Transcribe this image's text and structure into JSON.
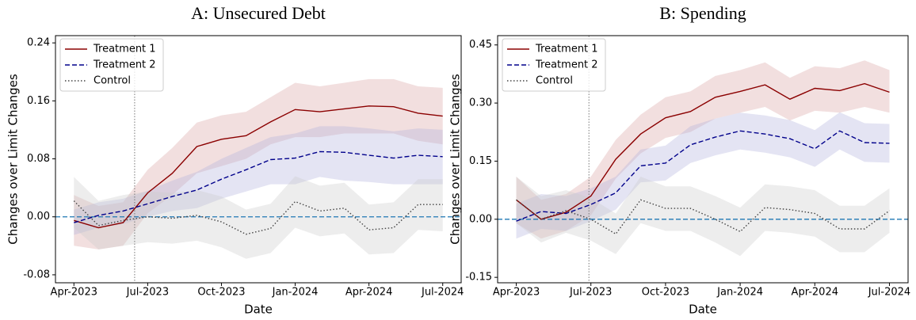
{
  "chart_data": [
    {
      "type": "line",
      "title": "A: Unsecured Debt",
      "x_label": "Date",
      "y_label": "Changes over Limit Changes",
      "categories": [
        "Apr-2023",
        null,
        null,
        "Jul-2023",
        null,
        null,
        "Oct-2023",
        null,
        null,
        "Jan-2024",
        null,
        null,
        "Apr-2024",
        null,
        null,
        "Jul-2024"
      ],
      "ylim": [
        -0.091,
        0.25
      ],
      "yticks": [
        -0.08,
        {
          "value": 0,
          "label": "0.00"
        },
        0.08,
        0.16,
        0.24
      ],
      "vline": 2.47,
      "hline": 0,
      "hline_color": "#1f77b4",
      "legend": "upper left",
      "series": [
        {
          "name": "Treatment 1",
          "color": "#8b0000",
          "band_color": "#d9a3a3",
          "dash": "solid",
          "values": [
            -0.005,
            -0.015,
            -0.008,
            0.033,
            0.06,
            0.097,
            0.107,
            0.112,
            0.131,
            0.148,
            0.145,
            0.149,
            0.153,
            0.152,
            0.143,
            0.139
          ],
          "lower": [
            -0.04,
            -0.045,
            -0.04,
            0.005,
            0.03,
            0.06,
            0.07,
            0.08,
            0.1,
            0.11,
            0.11,
            0.115,
            0.115,
            0.115,
            0.105,
            0.1
          ],
          "upper": [
            0.03,
            0.015,
            0.02,
            0.065,
            0.095,
            0.13,
            0.14,
            0.145,
            0.165,
            0.185,
            0.18,
            0.185,
            0.19,
            0.19,
            0.18,
            0.178
          ]
        },
        {
          "name": "Treatment 2",
          "color": "#00008b",
          "band_color": "#b3b3dd",
          "dash": "dashed",
          "values": [
            -0.008,
            0.002,
            0.008,
            0.018,
            0.028,
            0.037,
            0.052,
            0.065,
            0.079,
            0.081,
            0.09,
            0.089,
            0.085,
            0.081,
            0.085,
            0.083
          ],
          "lower": [
            -0.025,
            -0.015,
            -0.01,
            0.0,
            0.008,
            0.012,
            0.025,
            0.035,
            0.045,
            0.045,
            0.055,
            0.05,
            0.048,
            0.045,
            0.045,
            0.045
          ],
          "upper": [
            0.01,
            0.02,
            0.025,
            0.036,
            0.05,
            0.062,
            0.08,
            0.095,
            0.11,
            0.115,
            0.125,
            0.125,
            0.122,
            0.118,
            0.122,
            0.12
          ]
        },
        {
          "name": "Control",
          "color": "#444444",
          "band_color": "#cccccc",
          "dash": "dotted",
          "values": [
            0.022,
            -0.012,
            -0.005,
            0.0,
            -0.002,
            0.002,
            -0.007,
            -0.024,
            -0.016,
            0.021,
            0.008,
            0.012,
            -0.018,
            -0.015,
            0.017,
            0.017
          ],
          "lower": [
            -0.015,
            -0.045,
            -0.04,
            -0.035,
            -0.037,
            -0.033,
            -0.042,
            -0.058,
            -0.05,
            -0.015,
            -0.027,
            -0.023,
            -0.052,
            -0.05,
            -0.018,
            -0.02
          ],
          "upper": [
            0.055,
            0.022,
            0.03,
            0.035,
            0.033,
            0.037,
            0.028,
            0.01,
            0.018,
            0.056,
            0.043,
            0.047,
            0.017,
            0.02,
            0.052,
            0.052
          ]
        }
      ]
    },
    {
      "type": "line",
      "title": "B: Spending",
      "x_label": "Date",
      "y_label": "Changes over Limit Changes",
      "categories": [
        "Apr-2023",
        null,
        null,
        "Jul-2023",
        null,
        null,
        "Oct-2023",
        null,
        null,
        "Jan-2024",
        null,
        null,
        "Apr-2024",
        null,
        null,
        "Jul-2024"
      ],
      "ylim": [
        -0.164,
        0.474
      ],
      "yticks": [
        -0.15,
        {
          "value": 0,
          "label": "0.00"
        },
        0.15,
        {
          "value": 0.3,
          "label": "0.30"
        },
        0.45
      ],
      "vline": 2.92,
      "hline": 0,
      "hline_color": "#1f77b4",
      "legend": "upper left",
      "series": [
        {
          "name": "Treatment 1",
          "color": "#8b0000",
          "band_color": "#d9a3a3",
          "dash": "solid",
          "values": [
            0.05,
            0.0,
            0.018,
            0.06,
            0.155,
            0.22,
            0.262,
            0.278,
            0.315,
            0.33,
            0.347,
            0.31,
            0.338,
            0.332,
            0.35,
            0.328
          ],
          "lower": [
            -0.01,
            -0.05,
            -0.03,
            0.01,
            0.105,
            0.17,
            0.21,
            0.225,
            0.26,
            0.275,
            0.29,
            0.255,
            0.28,
            0.275,
            0.29,
            0.275
          ],
          "upper": [
            0.11,
            0.05,
            0.065,
            0.11,
            0.205,
            0.27,
            0.315,
            0.33,
            0.37,
            0.385,
            0.405,
            0.365,
            0.395,
            0.39,
            0.41,
            0.385
          ]
        },
        {
          "name": "Treatment 2",
          "color": "#00008b",
          "band_color": "#b3b3dd",
          "dash": "dashed",
          "values": [
            -0.005,
            0.02,
            0.015,
            0.038,
            0.068,
            0.138,
            0.145,
            0.192,
            0.212,
            0.228,
            0.22,
            0.208,
            0.182,
            0.228,
            0.198,
            0.196
          ],
          "lower": [
            -0.05,
            -0.025,
            -0.03,
            -0.005,
            0.025,
            0.095,
            0.1,
            0.145,
            0.165,
            0.18,
            0.172,
            0.16,
            0.135,
            0.18,
            0.148,
            0.146
          ],
          "upper": [
            0.04,
            0.065,
            0.06,
            0.08,
            0.11,
            0.18,
            0.19,
            0.24,
            0.26,
            0.275,
            0.268,
            0.256,
            0.23,
            0.276,
            0.248,
            0.246
          ]
        },
        {
          "name": "Control",
          "color": "#444444",
          "band_color": "#cccccc",
          "dash": "dotted",
          "values": [
            0.05,
            0.0,
            0.022,
            0.0,
            -0.038,
            0.05,
            0.028,
            0.028,
            0.0,
            -0.032,
            0.03,
            0.025,
            0.015,
            -0.025,
            -0.025,
            0.022
          ],
          "lower": [
            -0.01,
            -0.06,
            -0.035,
            -0.055,
            -0.09,
            -0.01,
            -0.03,
            -0.03,
            -0.06,
            -0.095,
            -0.03,
            -0.035,
            -0.045,
            -0.085,
            -0.085,
            -0.035
          ],
          "upper": [
            0.11,
            0.06,
            0.075,
            0.055,
            0.015,
            0.11,
            0.085,
            0.085,
            0.06,
            0.03,
            0.09,
            0.085,
            0.075,
            0.035,
            0.035,
            0.08
          ]
        }
      ]
    }
  ]
}
